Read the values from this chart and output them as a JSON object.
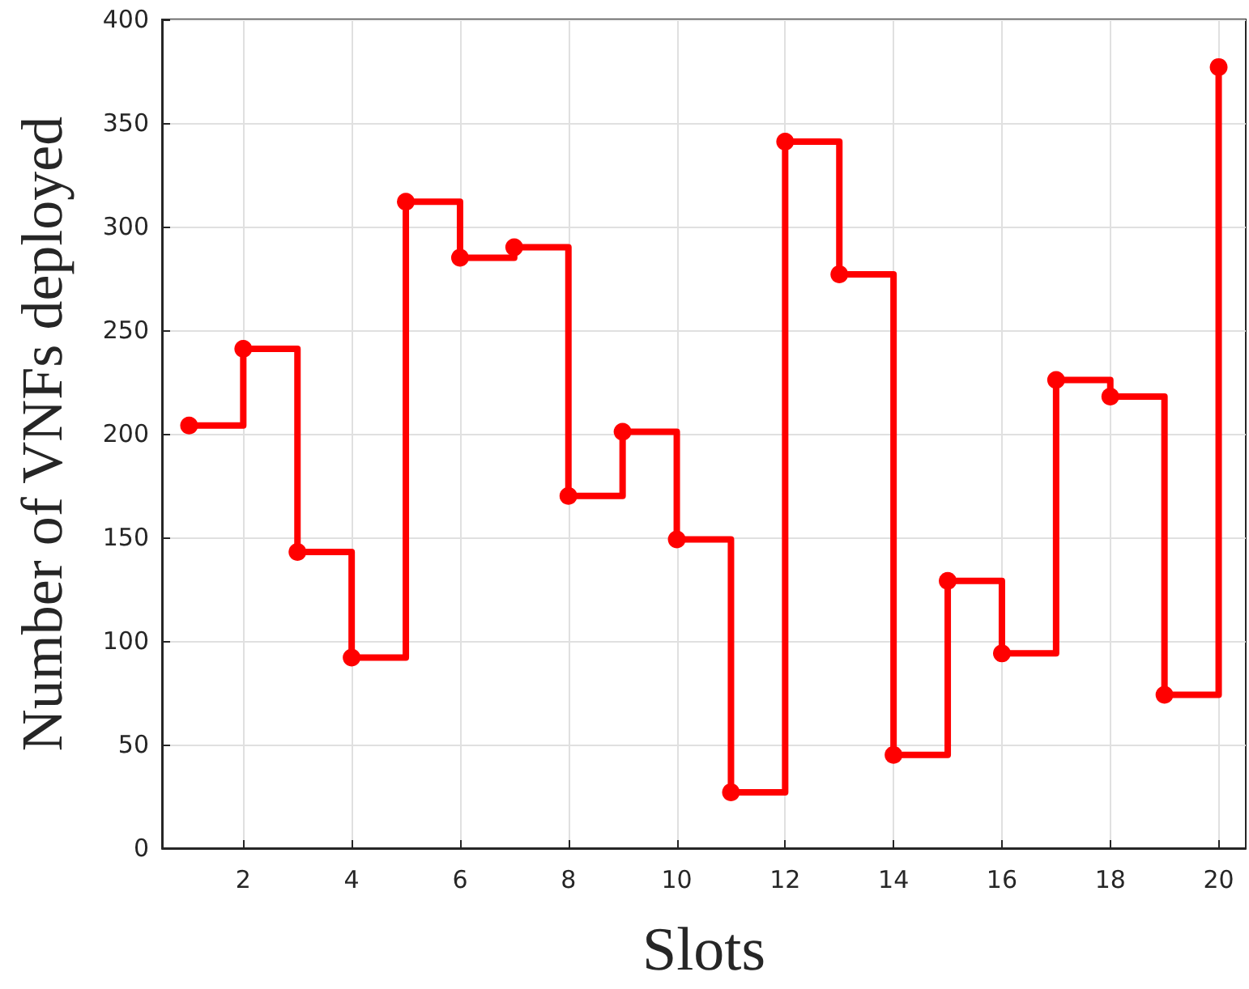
{
  "chart_data": {
    "type": "step",
    "xlabel": "Slots",
    "ylabel": "Number of VNFs deployed",
    "x": [
      1,
      2,
      3,
      4,
      5,
      6,
      7,
      8,
      9,
      10,
      11,
      12,
      13,
      14,
      15,
      16,
      17,
      18,
      19,
      20
    ],
    "series": [
      {
        "color": "#ff0000",
        "values": [
          204,
          241,
          143,
          92,
          312,
          285,
          290,
          170,
          201,
          149,
          27,
          341,
          277,
          45,
          129,
          94,
          226,
          218,
          74,
          377
        ]
      }
    ],
    "xlim": [
      0.5,
      20.5
    ],
    "xticks": [
      2,
      4,
      6,
      8,
      10,
      12,
      14,
      16,
      18,
      20
    ],
    "ylim": [
      0,
      400
    ],
    "yticks": [
      0,
      50,
      100,
      150,
      200,
      250,
      300,
      350,
      400
    ],
    "grid": true,
    "marker": "circle",
    "line_style": "solid"
  }
}
